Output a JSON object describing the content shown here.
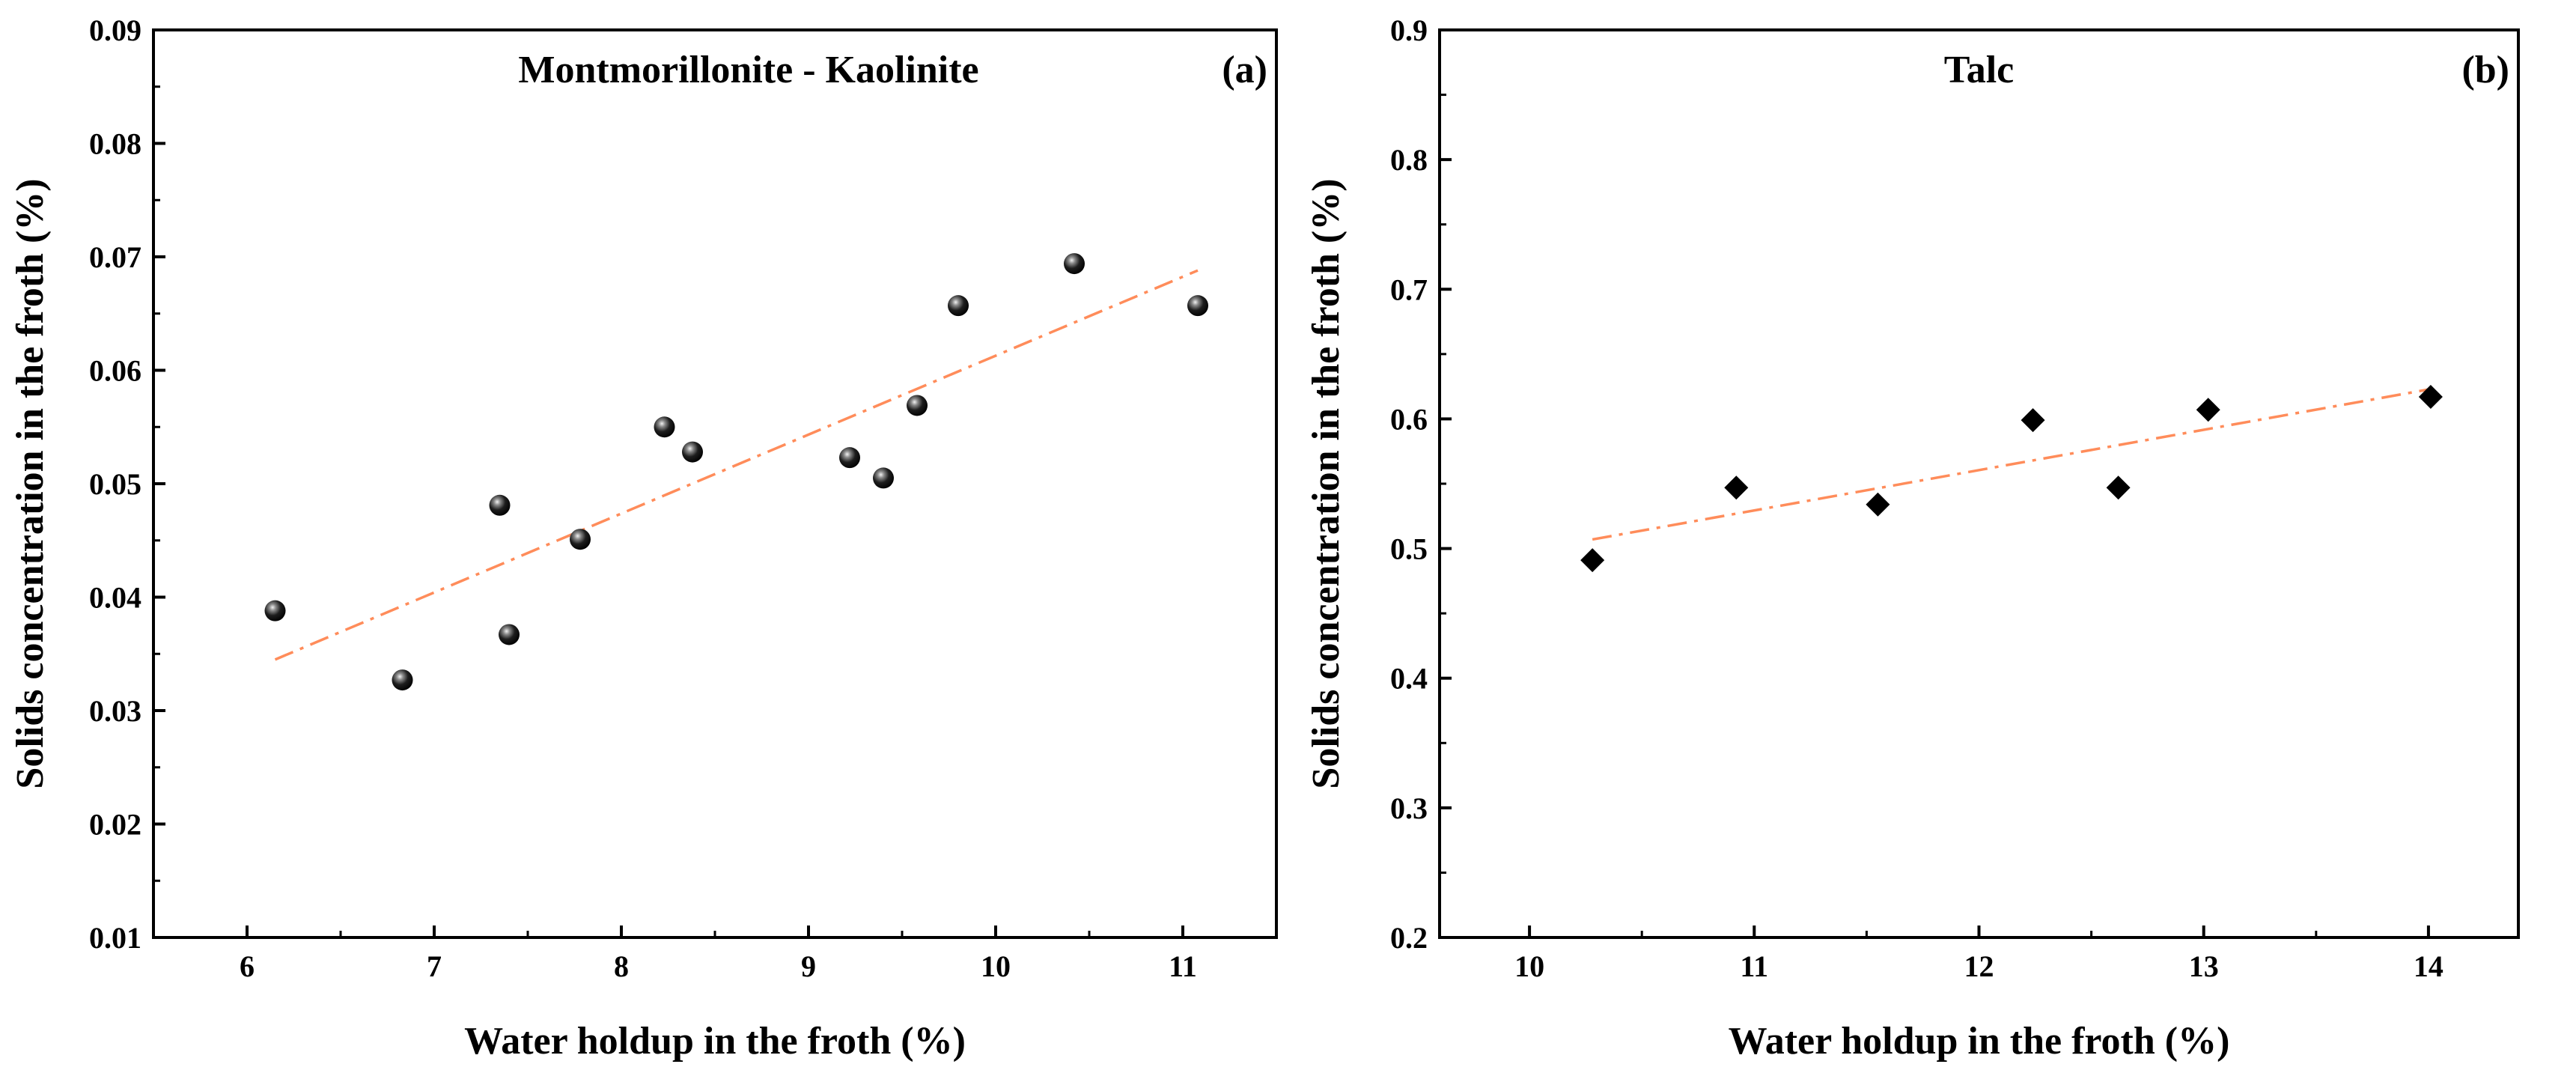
{
  "chart_data": [
    {
      "type": "scatter",
      "panel_tag": "(a)",
      "title": "Montmorillonite - Kaolinite",
      "xlabel": "Water holdup in the froth (%)",
      "ylabel": "Solids concentration in the froth (%)",
      "xlim": [
        5.5,
        11.5
      ],
      "ylim": [
        0.01,
        0.09
      ],
      "xticks": [
        6,
        7,
        8,
        9,
        10,
        11
      ],
      "xtick_labels": [
        "6",
        "7",
        "8",
        "9",
        "10",
        "11"
      ],
      "yticks": [
        0.01,
        0.02,
        0.03,
        0.04,
        0.05,
        0.06,
        0.07,
        0.08,
        0.09
      ],
      "ytick_labels": [
        "0.01",
        "0.02",
        "0.03",
        "0.04",
        "0.05",
        "0.06",
        "0.07",
        "0.08",
        "0.09"
      ],
      "marker": "sphere",
      "marker_color": "#000000",
      "points": [
        {
          "x": 6.15,
          "y": 0.0388
        },
        {
          "x": 6.83,
          "y": 0.0327
        },
        {
          "x": 7.35,
          "y": 0.0481
        },
        {
          "x": 7.4,
          "y": 0.0367
        },
        {
          "x": 7.78,
          "y": 0.0451
        },
        {
          "x": 8.23,
          "y": 0.055
        },
        {
          "x": 8.38,
          "y": 0.0528
        },
        {
          "x": 9.22,
          "y": 0.0523
        },
        {
          "x": 9.4,
          "y": 0.0505
        },
        {
          "x": 9.58,
          "y": 0.0569
        },
        {
          "x": 9.8,
          "y": 0.0657
        },
        {
          "x": 10.42,
          "y": 0.0694
        },
        {
          "x": 11.08,
          "y": 0.0657
        }
      ],
      "fit_line": {
        "style": "dash-dot",
        "color": "#FF8C5A",
        "x": [
          6.15,
          11.08
        ],
        "y": [
          0.0345,
          0.0688
        ]
      }
    },
    {
      "type": "scatter",
      "panel_tag": "(b)",
      "title": "Talc",
      "xlabel": "Water holdup in the froth (%)",
      "ylabel": "Solids concentration in the froth (%)",
      "xlim": [
        9.6,
        14.4
      ],
      "ylim": [
        0.2,
        0.9
      ],
      "xticks": [
        10,
        11,
        12,
        13,
        14
      ],
      "xtick_labels": [
        "10",
        "11",
        "12",
        "13",
        "14"
      ],
      "yticks": [
        0.2,
        0.3,
        0.4,
        0.5,
        0.6,
        0.7,
        0.8,
        0.9
      ],
      "ytick_labels": [
        "0.2",
        "0.3",
        "0.4",
        "0.5",
        "0.6",
        "0.7",
        "0.8",
        "0.9"
      ],
      "marker": "diamond",
      "marker_color": "#000000",
      "points": [
        {
          "x": 10.28,
          "y": 0.491
        },
        {
          "x": 10.92,
          "y": 0.547
        },
        {
          "x": 11.55,
          "y": 0.534
        },
        {
          "x": 12.24,
          "y": 0.599
        },
        {
          "x": 12.62,
          "y": 0.547
        },
        {
          "x": 13.02,
          "y": 0.607
        },
        {
          "x": 14.01,
          "y": 0.617
        }
      ],
      "fit_line": {
        "style": "dash-dot",
        "color": "#FF8C5A",
        "x": [
          10.28,
          14.01
        ],
        "y": [
          0.507,
          0.623
        ]
      }
    }
  ]
}
